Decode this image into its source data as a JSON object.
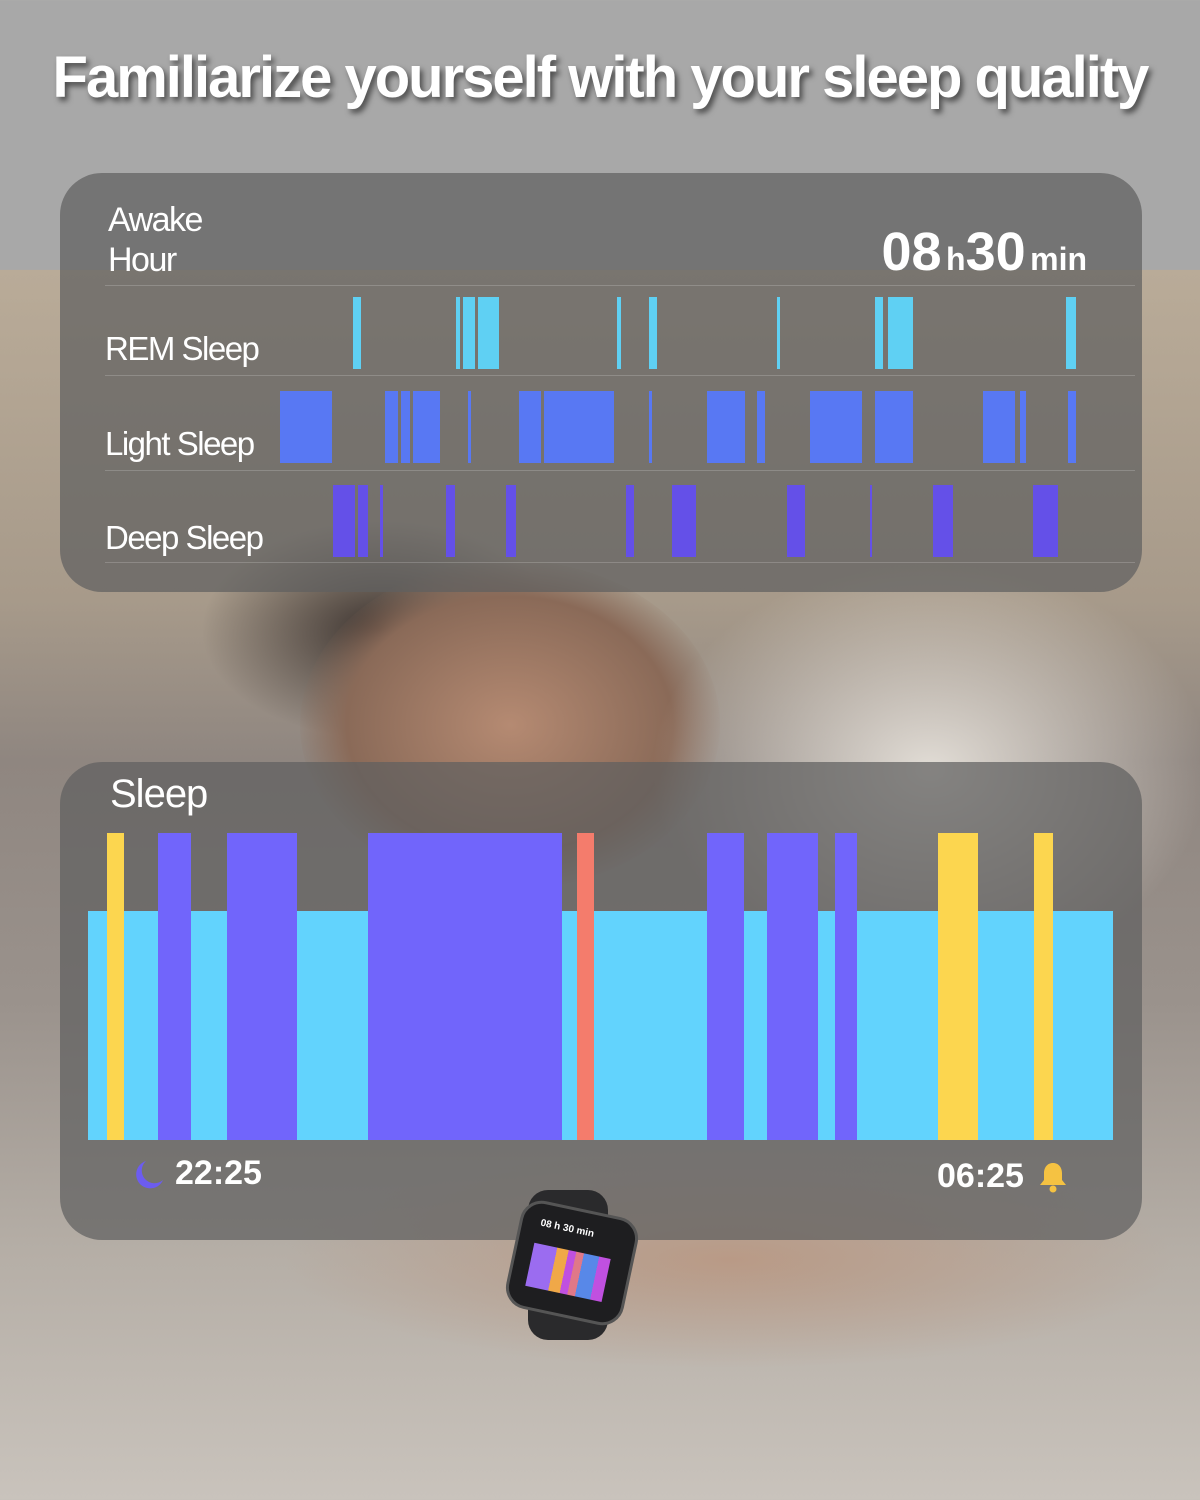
{
  "headline": "Familiarize yourself with your sleep quality",
  "stages_panel": {
    "awake_label_1": "Awake",
    "awake_label_2": "Hour",
    "duration": {
      "hours": "08",
      "h": "h",
      "minutes": "30",
      "min": "min"
    },
    "rows": [
      {
        "label": "REM Sleep",
        "color": "#5fd0f3",
        "segments": [
          [
            "23:09",
            5
          ],
          [
            "00:11",
            2
          ],
          [
            "00:15",
            7
          ],
          [
            "00:24",
            13
          ],
          [
            "01:48",
            2
          ],
          [
            "02:07",
            5
          ],
          [
            "03:24",
            2
          ],
          [
            "04:23",
            5
          ],
          [
            "04:31",
            15
          ],
          [
            "06:18",
            6
          ]
        ]
      },
      {
        "label": "Light Sleep",
        "color": "#5878f3",
        "segments": [
          [
            "22:25",
            31
          ],
          [
            "23:28",
            8
          ],
          [
            "23:38",
            5
          ],
          [
            "23:45",
            16
          ],
          [
            "00:18",
            2
          ],
          [
            "00:49",
            13
          ],
          [
            "01:04",
            42
          ],
          [
            "02:07",
            2
          ],
          [
            "02:42",
            23
          ],
          [
            "03:12",
            5
          ],
          [
            "03:44",
            31
          ],
          [
            "04:23",
            23
          ],
          [
            "05:28",
            19
          ],
          [
            "05:50",
            4
          ],
          [
            "06:19",
            5
          ]
        ]
      },
      {
        "label": "Deep Sleep",
        "color": "#6450e8",
        "segments": [
          [
            "22:57",
            13
          ],
          [
            "23:12",
            6
          ],
          [
            "23:25",
            2
          ],
          [
            "00:05",
            5
          ],
          [
            "00:41",
            6
          ],
          [
            "01:53",
            5
          ],
          [
            "02:21",
            14
          ],
          [
            "03:30",
            11
          ],
          [
            "04:20",
            1
          ],
          [
            "04:58",
            12
          ],
          [
            "05:58",
            15
          ]
        ]
      }
    ]
  },
  "sleep_panel": {
    "title": "Sleep",
    "start": "22:25",
    "end": "06:25",
    "base": {
      "stage": "light",
      "color": "#62d3fd"
    },
    "segments": [
      {
        "stage": "awake",
        "color": "#fcd64f",
        "from": "22:34",
        "to": "22:42"
      },
      {
        "stage": "deep",
        "color": "#7165fb",
        "from": "22:58",
        "to": "23:13"
      },
      {
        "stage": "deep",
        "color": "#7165fb",
        "from": "23:30",
        "to": "00:03"
      },
      {
        "stage": "deep",
        "color": "#7165fb",
        "from": "00:36",
        "to": "02:07"
      },
      {
        "stage": "rem",
        "color": "#f47c6c",
        "from": "02:14",
        "to": "02:22"
      },
      {
        "stage": "deep",
        "color": "#7165fb",
        "from": "03:15",
        "to": "03:32"
      },
      {
        "stage": "deep",
        "color": "#7165fb",
        "from": "03:43",
        "to": "04:07"
      },
      {
        "stage": "deep",
        "color": "#7165fb",
        "from": "04:15",
        "to": "04:25"
      },
      {
        "stage": "awake",
        "color": "#fcd64f",
        "from": "05:03",
        "to": "05:22"
      },
      {
        "stage": "awake",
        "color": "#fcd64f",
        "from": "05:48",
        "to": "05:57"
      }
    ],
    "icons": {
      "start": "moon-icon",
      "end": "bell-icon"
    }
  },
  "watch": {
    "duration": "08 h 30 min"
  }
}
